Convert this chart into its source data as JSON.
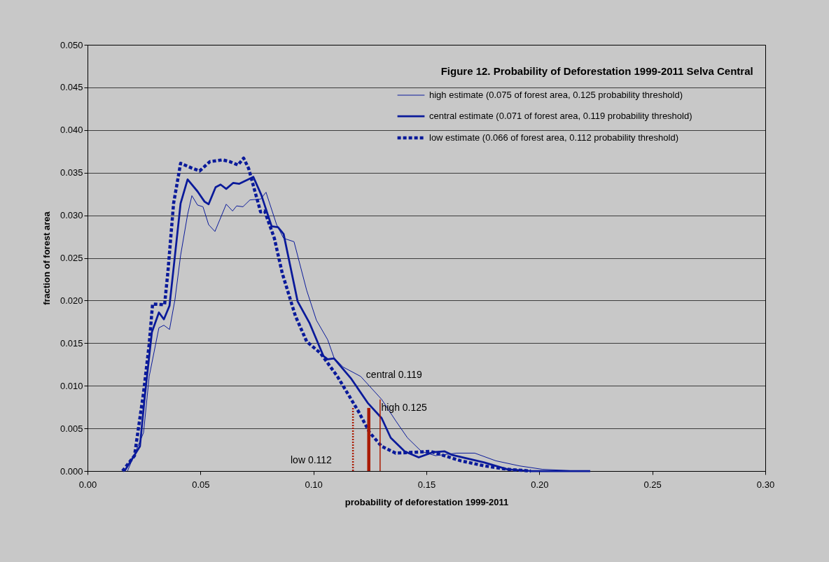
{
  "chart_data": {
    "type": "line",
    "title": "Figure 12. Probability of Deforestation 1999-2011 Selva Central",
    "xlabel": "probability of deforestation 1999-2011",
    "ylabel": "fraction of forest area",
    "xlim": [
      0,
      0.3
    ],
    "ylim": [
      0,
      0.05
    ],
    "xticks": [
      {
        "value": 0,
        "label": "0.00"
      },
      {
        "value": 0.05,
        "label": "0.05"
      },
      {
        "value": 0.1,
        "label": "0.10"
      },
      {
        "value": 0.15,
        "label": "0.15"
      },
      {
        "value": 0.2,
        "label": "0.20"
      },
      {
        "value": 0.25,
        "label": "0.25"
      },
      {
        "value": 0.3,
        "label": "0.30"
      }
    ],
    "yticks": [
      {
        "value": 0,
        "label": "0.000"
      },
      0.005,
      {
        "value": 0.01,
        "label": "0.010"
      },
      0.015,
      {
        "value": 0.02,
        "label": "0.020"
      },
      0.025,
      {
        "value": 0.03,
        "label": "0.030"
      },
      0.035,
      {
        "value": 0.04,
        "label": "0.040"
      },
      0.045,
      {
        "value": 0.05,
        "label": "0.050"
      }
    ],
    "grid": "y",
    "legend": "top right",
    "marker": "none",
    "series": [
      {
        "name": "high estimate (0.075 of forest area, 0.125 probability threshold)",
        "color": "#0a1a9a",
        "line_style": "solid",
        "x": [
          0.0177,
          0.0248,
          0.0273,
          0.0316,
          0.0338,
          0.0363,
          0.0387,
          0.0412,
          0.0443,
          0.0462,
          0.0487,
          0.0511,
          0.0536,
          0.0564,
          0.0614,
          0.0642,
          0.066,
          0.0688,
          0.0719,
          0.0766,
          0.079,
          0.0837,
          0.0868,
          0.0914,
          0.097,
          0.1013,
          0.1063,
          0.1091,
          0.1131,
          0.1209,
          0.1302,
          0.1364,
          0.1416,
          0.1478,
          0.154,
          0.1633,
          0.1714,
          0.1807,
          0.1912,
          0.2014,
          0.2169
        ],
        "values": [
          0,
          0.0045,
          0.0111,
          0.0168,
          0.0171,
          0.0166,
          0.0201,
          0.0253,
          0.0301,
          0.0323,
          0.0312,
          0.031,
          0.0289,
          0.0281,
          0.0313,
          0.0305,
          0.0311,
          0.031,
          0.0318,
          0.0319,
          0.0327,
          0.0289,
          0.0273,
          0.0269,
          0.0212,
          0.0177,
          0.0154,
          0.0133,
          0.0122,
          0.0111,
          0.0084,
          0.0059,
          0.0039,
          0.0023,
          0.0018,
          0.0021,
          0.0021,
          0.0012,
          0.0006,
          0.0002,
          0
        ]
      },
      {
        "name": "central estimate (0.071 of forest area, 0.119 probability threshold)",
        "color": "#0a1a9a",
        "line_style": "solid",
        "x": [
          0.0164,
          0.0232,
          0.0254,
          0.0285,
          0.0316,
          0.0338,
          0.0363,
          0.0412,
          0.0443,
          0.0487,
          0.0518,
          0.0536,
          0.0567,
          0.0589,
          0.0614,
          0.0645,
          0.0672,
          0.0734,
          0.0769,
          0.0815,
          0.0843,
          0.0868,
          0.093,
          0.0982,
          0.1044,
          0.1063,
          0.1091,
          0.1168,
          0.124,
          0.1302,
          0.1342,
          0.1404,
          0.1466,
          0.1528,
          0.1581,
          0.1612,
          0.1757,
          0.1859,
          0.1962,
          0.2225
        ],
        "values": [
          0,
          0.0029,
          0.0089,
          0.0163,
          0.0186,
          0.0178,
          0.0194,
          0.0314,
          0.0342,
          0.0328,
          0.0316,
          0.0313,
          0.0333,
          0.0336,
          0.0331,
          0.0338,
          0.0337,
          0.0345,
          0.0324,
          0.0287,
          0.0286,
          0.0278,
          0.0199,
          0.0174,
          0.0135,
          0.0131,
          0.0132,
          0.0108,
          0.008,
          0.0062,
          0.0039,
          0.0023,
          0.0016,
          0.0022,
          0.0023,
          0.0019,
          0.001,
          0.0002,
          0,
          0
        ]
      },
      {
        "name": "low estimate (0.066 of forest area, 0.112 probability threshold)",
        "color": "#0a1a9a",
        "line_style": "dashed",
        "x": [
          0.0155,
          0.0208,
          0.0248,
          0.0273,
          0.0288,
          0.0341,
          0.0356,
          0.0381,
          0.0412,
          0.0456,
          0.0496,
          0.0542,
          0.0598,
          0.0629,
          0.0666,
          0.0691,
          0.0713,
          0.0766,
          0.0784,
          0.0827,
          0.0862,
          0.092,
          0.097,
          0.1032,
          0.1106,
          0.1156,
          0.1199,
          0.1249,
          0.1302,
          0.1364,
          0.1447,
          0.1519,
          0.1652,
          0.1757,
          0.1859,
          0.1962
        ],
        "values": [
          0,
          0.0018,
          0.0092,
          0.0149,
          0.0196,
          0.0195,
          0.0234,
          0.0314,
          0.0361,
          0.0356,
          0.0352,
          0.0363,
          0.0365,
          0.0363,
          0.0359,
          0.0367,
          0.0355,
          0.0304,
          0.0305,
          0.0273,
          0.0232,
          0.0182,
          0.0152,
          0.0138,
          0.0111,
          0.0089,
          0.007,
          0.0045,
          0.0029,
          0.0021,
          0.0022,
          0.0023,
          0.0012,
          0.0006,
          0.0002,
          0
        ]
      },
      {
        "color": "#aa1a00",
        "line_style": "dotted",
        "x": [
          0.1175,
          0.1175
        ],
        "values": [
          0,
          0.0074
        ]
      },
      {
        "color": "#aa1a00",
        "line_style": "solid",
        "x": [
          0.1245,
          0.1245
        ],
        "values": [
          0,
          0.0074
        ]
      },
      {
        "color": "#aa1a00",
        "line_style": "solid",
        "x": [
          0.1295,
          0.1295
        ],
        "values": [
          0,
          0.0084
        ]
      }
    ],
    "annotations": [
      {
        "text": "central 0.119",
        "x": 0.1233,
        "y": 0.0108
      },
      {
        "text": "high 0.125",
        "x": 0.13,
        "y": 0.007
      },
      "low  0.112"
    ]
  }
}
